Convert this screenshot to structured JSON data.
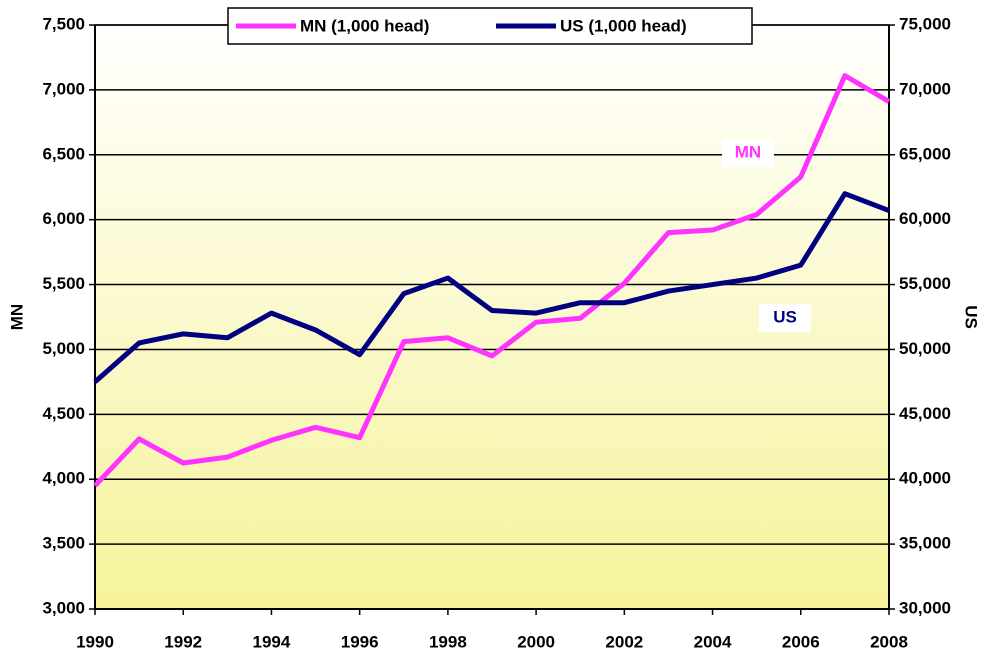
{
  "chart_data": {
    "type": "line",
    "x": [
      1990,
      1991,
      1992,
      1993,
      1994,
      1995,
      1996,
      1997,
      1998,
      1999,
      2000,
      2001,
      2002,
      2003,
      2004,
      2005,
      2006,
      2007,
      2008
    ],
    "xlim": [
      1990,
      2008
    ],
    "xticks": [
      1990,
      1992,
      1994,
      1996,
      1998,
      2000,
      2002,
      2004,
      2006,
      2008
    ],
    "ylabel": "MN",
    "y2label": "US",
    "ylim": [
      3000,
      7500
    ],
    "yticks": [
      {
        "value": 3000,
        "label": "3,000"
      },
      {
        "value": 3500,
        "label": "3,500"
      },
      {
        "value": 4000,
        "label": "4,000"
      },
      {
        "value": 4500,
        "label": "4,500"
      },
      {
        "value": 5000,
        "label": "5,000"
      },
      {
        "value": 5500,
        "label": "5,500"
      },
      {
        "value": 6000,
        "label": "6,000"
      },
      {
        "value": 6500,
        "label": "6,500"
      },
      {
        "value": 7000,
        "label": "7,000"
      },
      {
        "value": 7500,
        "label": "7,500"
      }
    ],
    "y2lim": [
      30000,
      75000
    ],
    "y2ticks": [
      {
        "value": 30000,
        "label": "30,000"
      },
      {
        "value": 35000,
        "label": "35,000"
      },
      {
        "value": 40000,
        "label": "40,000"
      },
      {
        "value": 45000,
        "label": "45,000"
      },
      {
        "value": 50000,
        "label": "50,000"
      },
      {
        "value": 55000,
        "label": "55,000"
      },
      {
        "value": 60000,
        "label": "60,000"
      },
      {
        "value": 65000,
        "label": "65,000"
      },
      {
        "value": 70000,
        "label": "70,000"
      },
      {
        "value": 75000,
        "label": "75,000"
      }
    ],
    "grid": true,
    "legend": "top",
    "series": [
      {
        "name": "MN (1,000 head)",
        "color": "#ff33ff",
        "values": [
          3950,
          4310,
          4125,
          4170,
          4300,
          4400,
          4320,
          5060,
          5090,
          4950,
          5210,
          5240,
          5510,
          5900,
          5920,
          6040,
          6330,
          7110,
          6910
        ]
      },
      {
        "name": "US (1,000 head)",
        "color": "#000080",
        "axis": "y2",
        "values": [
          47500,
          50500,
          51200,
          50900,
          52800,
          51500,
          49600,
          54300,
          55500,
          53000,
          52800,
          53600,
          53600,
          54500,
          55000,
          55500,
          56500,
          62000,
          60700
        ]
      }
    ],
    "annotations": [
      {
        "text": "MN"
      },
      {
        "text": "US"
      }
    ]
  }
}
